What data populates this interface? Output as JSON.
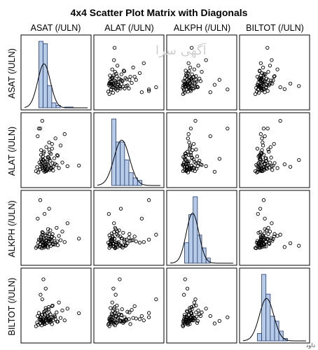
{
  "watermark_text": "آگهی سرا",
  "corner_text": "داود",
  "chart_data": {
    "type": "scatter",
    "title": "4x4 Scatter Plot Matrix with Diagonals",
    "variables": [
      "ASAT (/ULN)",
      "ALAT (/ULN)",
      "ALKPH (/ULN)",
      "BILTOT (/ULN)"
    ],
    "diagonal": "histogram with normal density curve",
    "axis_ticks_shown": false,
    "colors": {
      "hist_fill": "#b7cbe6",
      "hist_stroke": "#1f3d7a",
      "point": "#000000",
      "frame": "#000000"
    },
    "ranges": [
      [
        0.0,
        2.2
      ],
      [
        0.0,
        2.2
      ],
      [
        0.0,
        2.2
      ],
      [
        0.0,
        2.2
      ]
    ],
    "histograms": [
      {
        "bin_width": 0.15,
        "start": 0.35,
        "counts": [
          0,
          27,
          26,
          9,
          2,
          1,
          0,
          0.3,
          0.3
        ]
      },
      {
        "bin_width": 0.15,
        "start": 0.35,
        "counts": [
          0,
          26,
          17,
          17,
          10,
          5,
          3,
          2
        ]
      },
      {
        "bin_width": 0.15,
        "start": 0.35,
        "counts": [
          0,
          8,
          19,
          26,
          11,
          6,
          2
        ]
      },
      {
        "bin_width": 0.15,
        "start": 0.35,
        "counts": [
          0,
          3,
          27,
          19,
          10,
          8,
          4,
          1
        ]
      }
    ],
    "normal_curves": [
      {
        "mean": 0.68,
        "sd": 0.22
      },
      {
        "mean": 0.85,
        "sd": 0.27
      },
      {
        "mean": 0.78,
        "sd": 0.22
      },
      {
        "mean": 0.82,
        "sd": 0.25
      }
    ],
    "observations": [
      [
        0.4,
        0.42,
        0.45,
        0.43
      ],
      [
        0.44,
        0.55,
        0.5,
        0.55
      ],
      [
        0.48,
        0.38,
        0.62,
        0.48
      ],
      [
        0.52,
        0.7,
        0.48,
        0.66
      ],
      [
        0.55,
        0.48,
        0.58,
        0.52
      ],
      [
        0.58,
        0.95,
        0.72,
        0.72
      ],
      [
        0.6,
        0.62,
        0.44,
        0.46
      ],
      [
        0.62,
        0.52,
        0.66,
        0.8
      ],
      [
        0.64,
        0.8,
        0.54,
        0.58
      ],
      [
        0.66,
        0.45,
        0.78,
        0.62
      ],
      [
        0.68,
        1.05,
        0.6,
        0.9
      ],
      [
        0.7,
        0.58,
        0.5,
        0.5
      ],
      [
        0.72,
        0.72,
        0.85,
        0.7
      ],
      [
        0.74,
        0.42,
        0.56,
        0.64
      ],
      [
        0.76,
        1.2,
        0.7,
        0.96
      ],
      [
        0.78,
        0.66,
        0.62,
        0.54
      ],
      [
        0.8,
        0.5,
        0.92,
        0.74
      ],
      [
        0.82,
        0.88,
        0.46,
        0.6
      ],
      [
        0.84,
        0.6,
        0.74,
        1.05
      ],
      [
        0.86,
        1.35,
        0.66,
        0.68
      ],
      [
        0.88,
        0.46,
        0.58,
        0.56
      ],
      [
        0.9,
        0.76,
        1.02,
        0.82
      ],
      [
        0.92,
        0.98,
        0.52,
        0.64
      ],
      [
        0.94,
        0.54,
        0.8,
        0.72
      ],
      [
        0.96,
        1.15,
        0.68,
        0.5
      ],
      [
        0.98,
        0.68,
        0.9,
        1.1
      ],
      [
        1.0,
        0.44,
        0.56,
        0.62
      ],
      [
        1.04,
        0.84,
        0.76,
        0.78
      ],
      [
        1.08,
        1.48,
        0.62,
        0.66
      ],
      [
        1.12,
        0.62,
        1.1,
        0.88
      ],
      [
        1.16,
        0.92,
        0.54,
        0.58
      ],
      [
        1.2,
        0.52,
        0.84,
        1.2
      ],
      [
        1.26,
        1.25,
        0.7,
        0.7
      ],
      [
        1.32,
        0.7,
        0.98,
        0.94
      ],
      [
        1.4,
        1.62,
        0.64,
        0.62
      ],
      [
        1.5,
        0.58,
        1.25,
        1.0
      ],
      [
        0.5,
        1.8,
        0.72,
        0.86
      ],
      [
        0.62,
        2.05,
        0.88,
        1.3
      ],
      [
        0.46,
        1.55,
        1.4,
        0.76
      ],
      [
        0.7,
        0.4,
        1.55,
        0.52
      ],
      [
        0.56,
        0.64,
        0.48,
        1.45
      ],
      [
        0.86,
        0.82,
        1.72,
        0.6
      ],
      [
        0.74,
        0.56,
        0.6,
        1.65
      ],
      [
        1.9,
        0.6,
        0.75,
        0.85
      ],
      [
        0.55,
        1.8,
        2.0,
        0.72
      ],
      [
        0.66,
        0.78,
        0.52,
        1.95
      ],
      [
        0.92,
        0.5,
        0.66,
        0.58
      ],
      [
        0.58,
        1.1,
        0.78,
        0.66
      ],
      [
        0.8,
        0.46,
        0.5,
        0.74
      ],
      [
        0.64,
        0.9,
        0.94,
        0.54
      ],
      [
        0.72,
        0.54,
        0.58,
        0.92
      ],
      [
        0.88,
        1.02,
        0.72,
        0.62
      ],
      [
        0.6,
        0.74,
        0.64,
        0.8
      ],
      [
        0.76,
        0.42,
        0.86,
        0.68
      ],
      [
        0.68,
        0.62,
        0.46,
        0.56
      ],
      [
        0.84,
        0.86,
        0.76,
        0.98
      ],
      [
        0.54,
        0.48,
        0.7,
        0.64
      ],
      [
        1.06,
        0.66,
        0.56,
        0.74
      ],
      [
        0.96,
        1.3,
        0.82,
        1.08
      ],
      [
        0.62,
        0.58,
        0.96,
        0.6
      ],
      [
        0.78,
        0.72,
        0.6,
        0.7
      ],
      [
        0.7,
        0.5,
        0.74,
        0.84
      ],
      [
        1.14,
        0.94,
        0.66,
        0.58
      ],
      [
        0.82,
        0.64,
        1.06,
        0.76
      ],
      [
        0.66,
        1.0,
        0.54,
        0.66
      ],
      [
        0.74,
        0.46,
        0.68,
        1.02
      ],
      [
        0.58,
        0.8,
        0.82,
        0.62
      ],
      [
        1.0,
        0.56,
        0.58,
        0.72
      ],
      [
        0.86,
        1.12,
        0.9,
        0.88
      ],
      [
        0.64,
        0.68,
        0.62,
        0.54
      ],
      [
        0.9,
        0.52,
        0.74,
        0.64
      ],
      [
        0.72,
        0.84,
        0.5,
        0.8
      ]
    ]
  }
}
